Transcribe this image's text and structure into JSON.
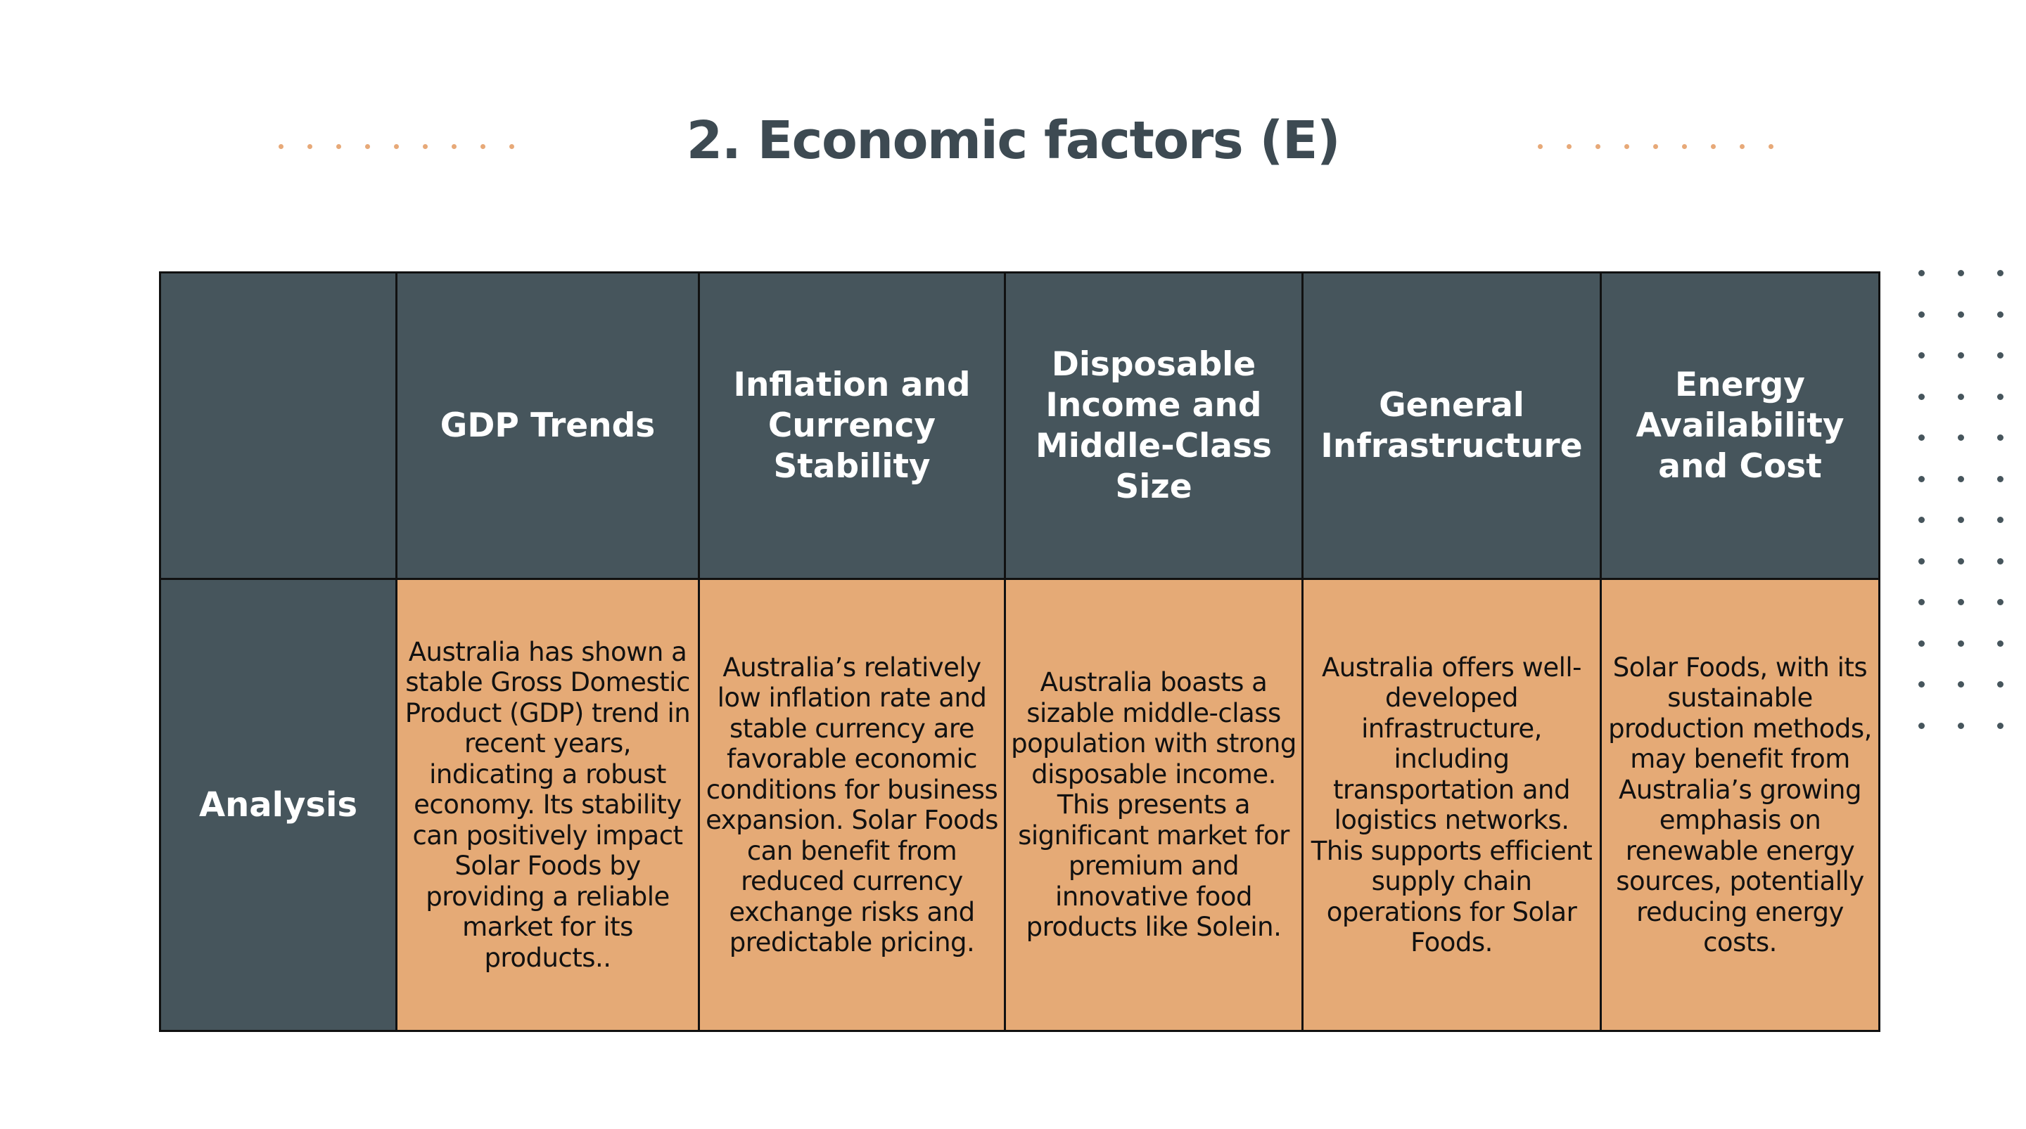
{
  "slide": {
    "title": "2. Economic factors (E)"
  },
  "colors": {
    "header_bg": "#46555c",
    "cell_bg": "#e5aa76",
    "title_text": "#3d4a52",
    "accent_dots": "#e7a978",
    "grid_dots": "#46555c",
    "border": "#111111"
  },
  "table": {
    "corner": "",
    "columns": [
      "GDP Trends",
      "Inflation and Currency Stability",
      "Disposable Income and Middle-Class Size",
      "General Infrastructure",
      "Energy Availability and Cost"
    ],
    "row_label": "Analysis",
    "cells": [
      "Australia has shown a stable Gross Domestic Product (GDP) trend in recent years, indicating a robust economy. Its stability can positively impact Solar Foods by providing a reliable market for its products..",
      "Australia’s relatively low inflation rate and stable currency are favorable economic conditions for business expansion. Solar Foods can benefit from reduced currency exchange risks and predictable pricing.",
      "Australia boasts a sizable middle-class population with strong disposable income. This presents a significant market for premium and innovative food products like Solein.",
      "Australia offers well-developed infrastructure, including transportation and logistics networks. This supports efficient supply chain operations for Solar Foods.",
      "Solar Foods, with its sustainable production methods, may benefit from Australia’s growing emphasis on renewable energy sources, potentially reducing energy costs."
    ]
  }
}
